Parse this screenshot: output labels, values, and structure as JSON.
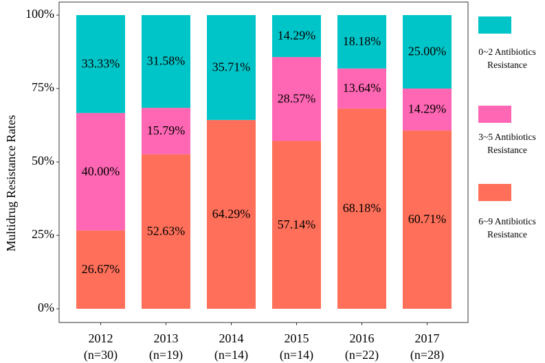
{
  "chart_data": {
    "type": "bar",
    "stacked": true,
    "ylabel": "Multidrug Resistance Rates",
    "xlabel": "",
    "ylim": [
      0,
      100
    ],
    "yticks": [
      0,
      25,
      50,
      75,
      100
    ],
    "ytick_labels": [
      "0%",
      "25%",
      "50%",
      "75%",
      "100%"
    ],
    "categories": [
      {
        "year": "2012",
        "n": "(n=30)"
      },
      {
        "year": "2013",
        "n": "(n=19)"
      },
      {
        "year": "2014",
        "n": "(n=14)"
      },
      {
        "year": "2015",
        "n": "(n=14)"
      },
      {
        "year": "2016",
        "n": "(n=22)"
      },
      {
        "year": "2017",
        "n": "(n=28)"
      }
    ],
    "series": [
      {
        "key": "6-9",
        "name_line1": "6~9 Antibiotics",
        "name_line2": "Resistance",
        "color": "#FF6F59",
        "values": [
          26.67,
          52.63,
          64.29,
          57.14,
          68.18,
          60.71
        ],
        "labels": [
          "26.67%",
          "52.63%",
          "64.29%",
          "57.14%",
          "68.18%",
          "60.71%"
        ]
      },
      {
        "key": "3-5",
        "name_line1": "3~5 Antibiotics",
        "name_line2": "Resistance",
        "color": "#FF66B3",
        "values": [
          40.0,
          15.79,
          0,
          28.57,
          13.64,
          14.29
        ],
        "labels": [
          "40.00%",
          "15.79%",
          "",
          "28.57%",
          "13.64%",
          "14.29%"
        ]
      },
      {
        "key": "0-2",
        "name_line1": "0~2 Antibiotics",
        "name_line2": "Resistance",
        "color": "#00C5C8",
        "values": [
          33.33,
          31.58,
          35.71,
          14.29,
          18.18,
          25.0
        ],
        "labels": [
          "33.33%",
          "31.58%",
          "35.71%",
          "14.29%",
          "18.18%",
          "25.00%"
        ]
      }
    ],
    "legend_order": [
      "0-2",
      "3-5",
      "6-9"
    ],
    "legend_position": "right",
    "grid": false
  }
}
